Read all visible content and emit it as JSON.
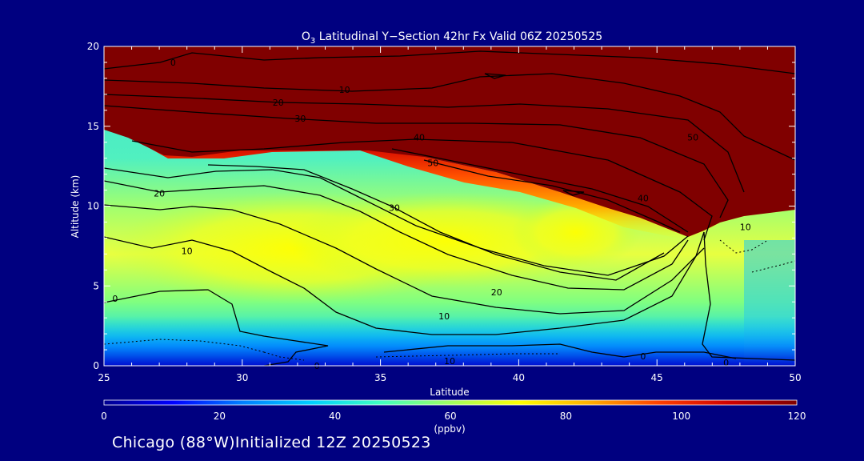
{
  "chart_data": {
    "type": "heatmap",
    "title_main": "O",
    "title_sub": "3",
    "title_rest": " Latitudinal Y−Section 42hr  Fx Valid 06Z 20250525",
    "xlabel": "Latitude",
    "ylabel": "Altitude (km)",
    "x_ticks": [
      "25",
      "30",
      "35",
      "40",
      "45",
      "50"
    ],
    "y_ticks": [
      "0",
      "5",
      "10",
      "15",
      "20"
    ],
    "xlim": [
      25,
      50
    ],
    "ylim": [
      0,
      20
    ],
    "colorbar": {
      "ticks": [
        "0",
        "20",
        "40",
        "60",
        "80",
        "100",
        "120"
      ],
      "range": [
        0,
        120
      ],
      "unit": "(ppbv)",
      "colors": [
        "#000090",
        "#0000ff",
        "#0080ff",
        "#00d0ff",
        "#40ffc0",
        "#a0ff60",
        "#ffff00",
        "#ffb000",
        "#ff4000",
        "#d00000",
        "#800000"
      ]
    },
    "contour_labels": [
      {
        "text": "0",
        "lat": 27.5,
        "alt": 19.0
      },
      {
        "text": "10",
        "lat": 33.7,
        "alt": 17.3
      },
      {
        "text": "20",
        "lat": 31.3,
        "alt": 16.5
      },
      {
        "text": "30",
        "lat": 32.1,
        "alt": 15.5
      },
      {
        "text": "40",
        "lat": 36.4,
        "alt": 14.3
      },
      {
        "text": "50",
        "lat": 36.9,
        "alt": 12.7
      },
      {
        "text": "20",
        "lat": 27.0,
        "alt": 10.8
      },
      {
        "text": "30",
        "lat": 35.5,
        "alt": 9.9
      },
      {
        "text": "10",
        "lat": 28.0,
        "alt": 7.2
      },
      {
        "text": "0",
        "lat": 25.4,
        "alt": 4.2
      },
      {
        "text": "20",
        "lat": 39.2,
        "alt": 4.6
      },
      {
        "text": "10",
        "lat": 37.3,
        "alt": 3.1
      },
      {
        "text": "10",
        "lat": 37.5,
        "alt": 0.3
      },
      {
        "text": "0",
        "lat": 32.7,
        "alt": 0.0
      },
      {
        "text": "0",
        "lat": 44.5,
        "alt": 0.6
      },
      {
        "text": "0",
        "lat": 47.5,
        "alt": 0.2
      },
      {
        "text": "10",
        "lat": 48.2,
        "alt": 8.7
      },
      {
        "text": "40",
        "lat": 44.5,
        "alt": 10.5
      },
      {
        "text": "50",
        "lat": 46.3,
        "alt": 14.3
      }
    ]
  },
  "footer": "Chicago (88°W)Initialized 12Z 20250523"
}
